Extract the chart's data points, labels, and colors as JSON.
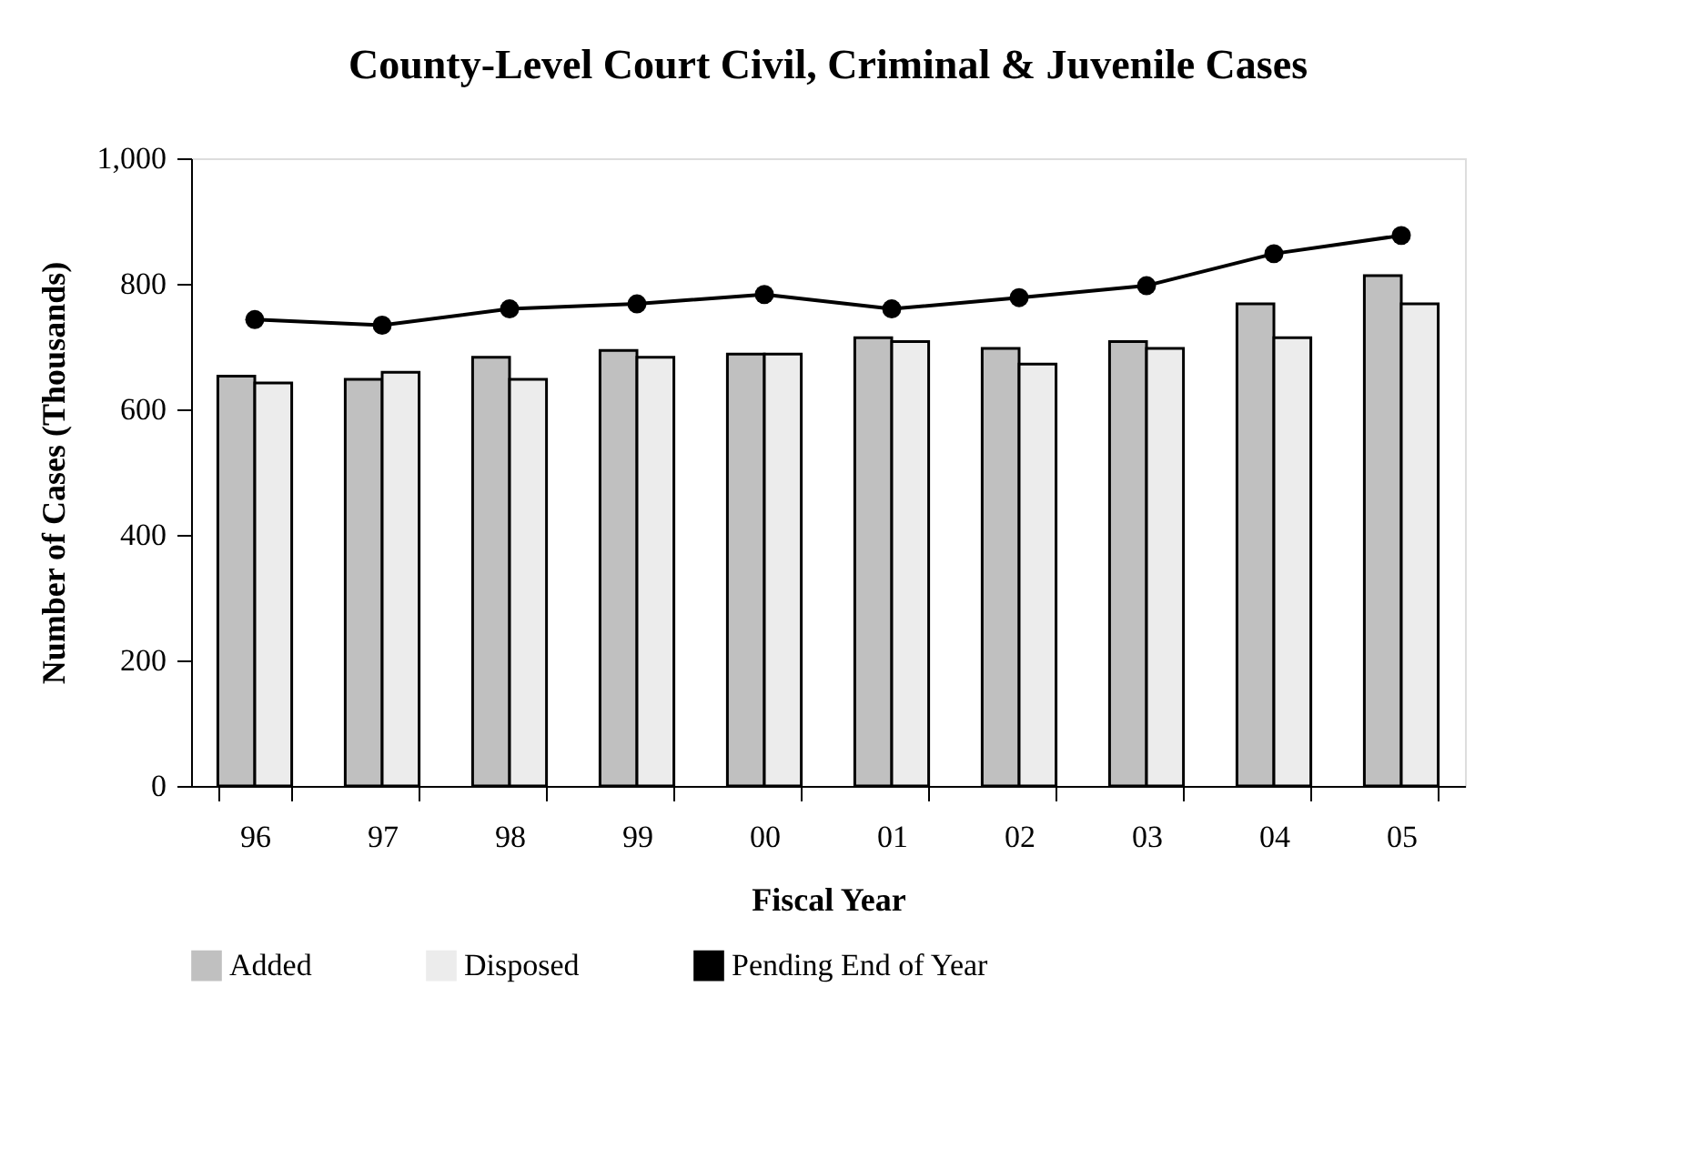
{
  "chart_data": {
    "type": "bar",
    "title": "County-Level Court Civil, Criminal & Juvenile Cases",
    "xlabel": "Fiscal Year",
    "ylabel": "Number of Cases (Thousands)",
    "categories": [
      "96",
      "97",
      "98",
      "99",
      "00",
      "01",
      "02",
      "03",
      "04",
      "05"
    ],
    "series": [
      {
        "name": "Added",
        "color": "#c0c0c0",
        "values": [
          653,
          648,
          683,
          694,
          688,
          714,
          697,
          708,
          768,
          813
        ]
      },
      {
        "name": "Disposed",
        "color": "#ececec",
        "values": [
          642,
          659,
          648,
          683,
          688,
          708,
          672,
          697,
          714,
          768
        ]
      },
      {
        "name": "Pending End of Year",
        "type": "line",
        "color": "#000000",
        "values": [
          743,
          734,
          760,
          768,
          783,
          760,
          778,
          797,
          848,
          877
        ]
      }
    ],
    "ylim": [
      0,
      1000
    ],
    "yticks": [
      0,
      200,
      400,
      600,
      800,
      {
        "value": 1000,
        "label": "1,000"
      }
    ],
    "grid": false,
    "legend": "bottom",
    "marker": "circle",
    "line_style": "solid"
  }
}
